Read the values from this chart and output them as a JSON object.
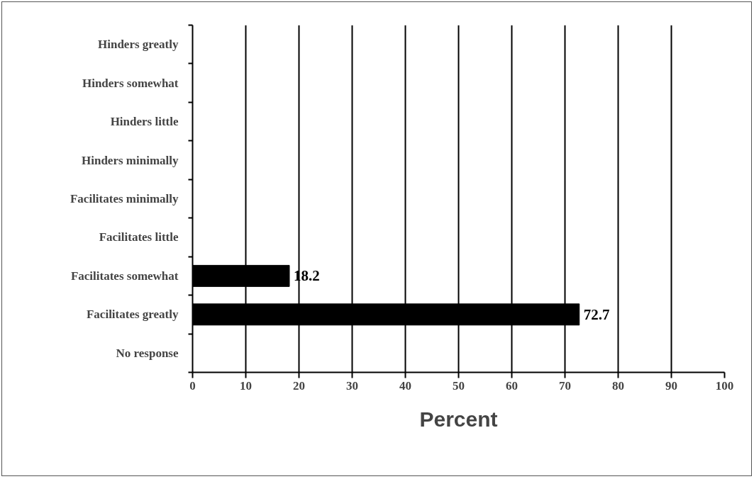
{
  "chart_data": {
    "type": "bar",
    "orientation": "horizontal",
    "categories": [
      "Hinders greatly",
      "Hinders somewhat",
      "Hinders little",
      "Hinders minimally",
      "Facilitates minimally",
      "Facilitates little",
      "Facilitates somewhat",
      "Facilitates greatly",
      "No response"
    ],
    "values": [
      0,
      0,
      0,
      0,
      0,
      0,
      18.2,
      72.7,
      0
    ],
    "value_labels": [
      null,
      null,
      null,
      null,
      null,
      null,
      "18.2",
      "72.7",
      null
    ],
    "color": "#000000",
    "xlabel": "Percent",
    "xlim": [
      0,
      100
    ],
    "xticks": [
      0,
      10,
      20,
      30,
      40,
      50,
      60,
      70,
      80,
      90,
      100
    ],
    "grid": "x"
  }
}
